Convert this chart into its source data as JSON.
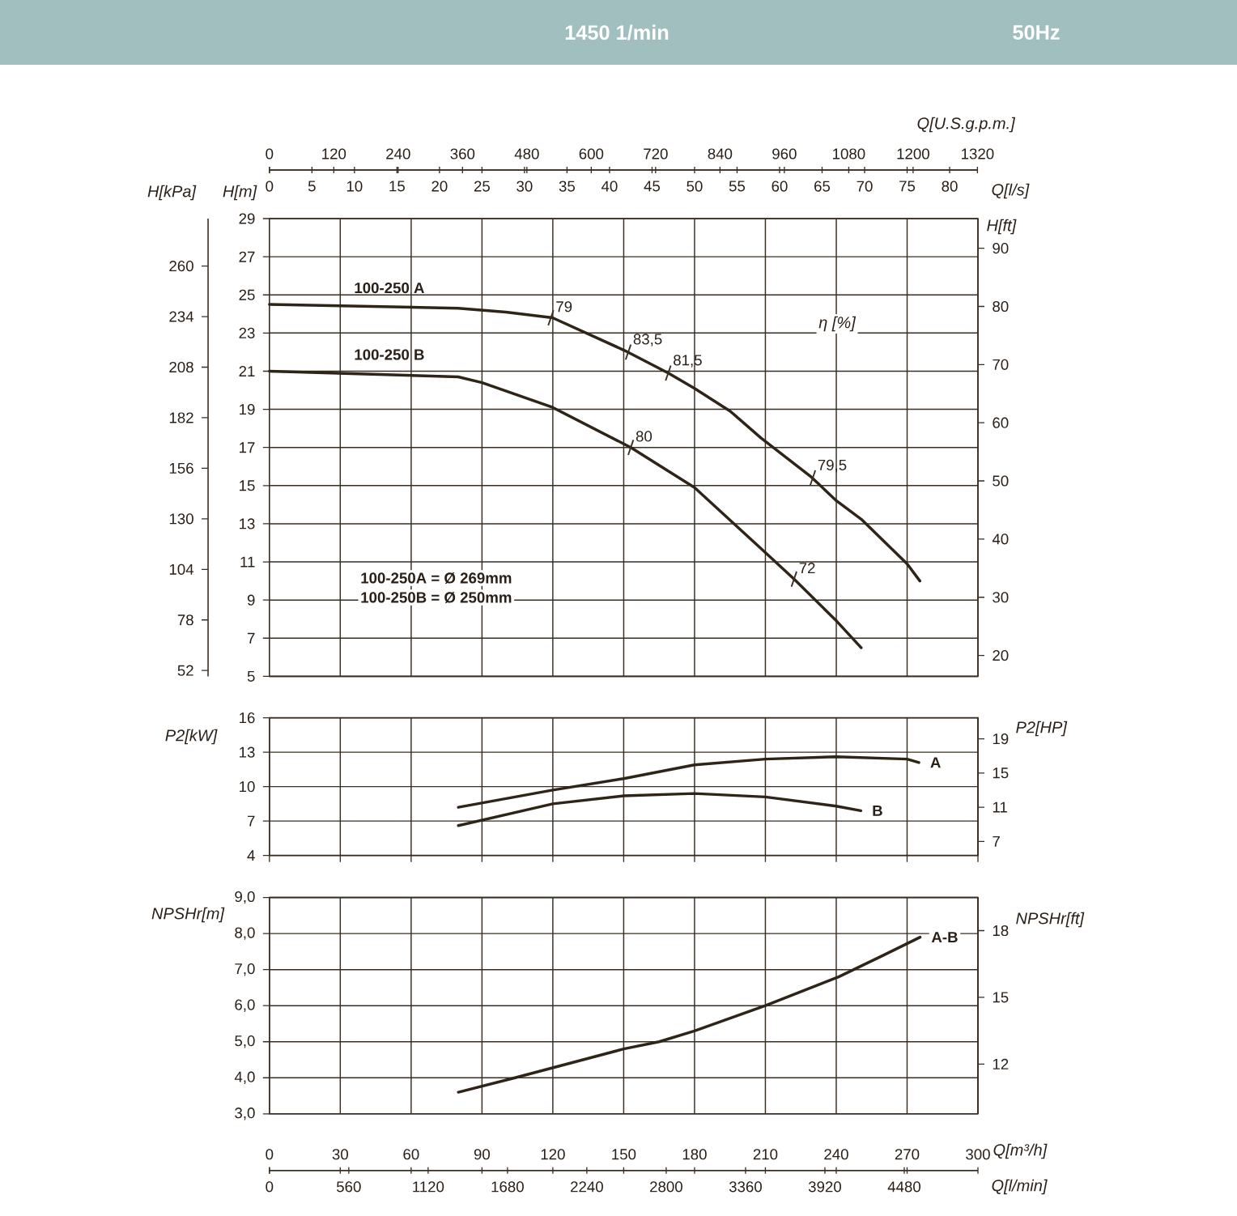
{
  "chart_data": [
    {
      "type": "line",
      "title": "1450 1/min",
      "subtitle": "50Hz",
      "ylabel": "H[m]",
      "y2label": "H[ft]",
      "y3label": "H[kPa]",
      "x2label": "Q[U.S.g.p.m.]",
      "xlabel": "Q[l/s]",
      "xlim": [
        0,
        83.33
      ],
      "xticks": [
        0,
        5,
        10,
        15,
        20,
        25,
        30,
        35,
        40,
        45,
        50,
        55,
        60,
        65,
        70,
        75,
        80
      ],
      "ylim": [
        5,
        29
      ],
      "yticks": [
        5,
        7,
        9,
        11,
        13,
        15,
        17,
        19,
        21,
        23,
        25,
        27,
        29
      ],
      "y2lim": [
        16.4,
        95.1
      ],
      "y2ticks": [
        20,
        30,
        40,
        50,
        60,
        70,
        80,
        90
      ],
      "y3lim": [
        49,
        284.4
      ],
      "y3ticks": [
        52,
        78,
        104,
        130,
        156,
        182,
        208,
        234,
        260
      ],
      "x2lim": [
        0,
        1320.9
      ],
      "x2ticks": [
        0,
        120,
        240,
        360,
        480,
        600,
        720,
        840,
        960,
        1080,
        1200,
        1320
      ],
      "grid": "y",
      "ref_lines": [
        {
          "axis": "x",
          "value": 8.33,
          "color": "#3a2e22"
        },
        {
          "axis": "x",
          "value": 16.67,
          "color": "#3a2e22"
        },
        {
          "axis": "x",
          "value": 25,
          "color": "#3a2e22"
        },
        {
          "axis": "x",
          "value": 33.33,
          "color": "#3a2e22"
        },
        {
          "axis": "x",
          "value": 41.67,
          "color": "#3a2e22"
        },
        {
          "axis": "x",
          "value": 50,
          "color": "#3a2e22"
        },
        {
          "axis": "x",
          "value": 58.33,
          "color": "#3a2e22"
        },
        {
          "axis": "x",
          "value": 66.67,
          "color": "#3a2e22"
        },
        {
          "axis": "x",
          "value": 75,
          "color": "#3a2e22"
        }
      ],
      "series": [
        {
          "name": "100-250 A",
          "color": "#2e2418",
          "x": [
            0,
            22.2,
            27.8,
            33.3,
            41.7,
            46.9,
            50,
            54.2,
            57.8,
            63.6,
            66.7,
            69.7,
            75,
            76.5
          ],
          "values": [
            24.5,
            24.3,
            24.1,
            23.8,
            22.1,
            20.9,
            20.1,
            18.9,
            17.5,
            15.5,
            14.2,
            13.2,
            10.9,
            10.0
          ]
        },
        {
          "name": "100-250 B",
          "color": "#2e2418",
          "x": [
            0,
            22.2,
            25,
            33.3,
            42.5,
            50,
            58.3,
            61.7,
            66.7,
            69.6
          ],
          "values": [
            21.0,
            20.7,
            20.4,
            19.1,
            17.0,
            14.9,
            11.5,
            10.1,
            7.9,
            6.5
          ]
        }
      ],
      "annotations": [
        "η [%]",
        "100-250A = Ø 269mm",
        "100-250B = Ø 250mm",
        {
          "text": "79",
          "x": 33.1,
          "y": 23.8
        },
        {
          "text": "83,5",
          "x": 42.2,
          "y": 22.0
        },
        {
          "text": "81,5",
          "x": 46.9,
          "y": 20.9
        },
        {
          "text": "80",
          "x": 42.5,
          "y": 17.0
        },
        {
          "text": "79,5",
          "x": 63.9,
          "y": 15.4
        },
        {
          "text": "72",
          "x": 61.7,
          "y": 10.1
        }
      ]
    },
    {
      "type": "line",
      "ylabel": "P2[kW]",
      "y2label": "P2[HP]",
      "xlim": [
        0,
        300
      ],
      "xticks": [
        0,
        30,
        60,
        90,
        120,
        150,
        180,
        210,
        240,
        270,
        300
      ],
      "ylim": [
        4,
        16
      ],
      "yticks": [
        4,
        7,
        10,
        13,
        16
      ],
      "y2lim": [
        5.36,
        21.46
      ],
      "y2ticks": [
        7,
        11,
        15,
        19
      ],
      "tick_labels": "y",
      "grid": true,
      "series": [
        {
          "name": "A",
          "color": "#2e2418",
          "x": [
            80,
            120,
            150,
            180,
            210,
            240,
            270,
            275
          ],
          "values": [
            8.2,
            9.7,
            10.7,
            11.9,
            12.4,
            12.6,
            12.4,
            12.1
          ]
        },
        {
          "name": "B",
          "color": "#2e2418",
          "x": [
            80,
            120,
            150,
            180,
            210,
            240,
            250.4
          ],
          "values": [
            6.6,
            8.5,
            9.2,
            9.4,
            9.1,
            8.3,
            7.9
          ]
        }
      ]
    },
    {
      "type": "line",
      "ylabel": "NPSHr[m]",
      "y2label": "NPSHr[ft]",
      "xlabel": "Q[m³/h]",
      "x2label": "Q[l/min]",
      "xlim": [
        0,
        300
      ],
      "xticks": [
        0,
        30,
        60,
        90,
        120,
        150,
        180,
        210,
        240,
        270,
        300
      ],
      "x2lim": [
        0,
        5000
      ],
      "x2ticks": [
        0,
        560,
        1120,
        1680,
        2240,
        2800,
        3360,
        3920,
        4480
      ],
      "ylim": [
        3,
        9
      ],
      "yticks": [
        {
          "value": 3,
          "label": "3,0"
        },
        {
          "value": 4,
          "label": "4,0"
        },
        {
          "value": 5,
          "label": "5,0"
        },
        {
          "value": 6,
          "label": "6,0"
        },
        {
          "value": 7,
          "label": "7,0"
        },
        {
          "value": 8,
          "label": "8,0"
        },
        {
          "value": 9,
          "label": "9,0"
        }
      ],
      "y2lim": [
        9.76,
        19.49
      ],
      "y2ticks": [
        12,
        15,
        18
      ],
      "grid": true,
      "series": [
        {
          "name": "A-B",
          "color": "#2e2418",
          "x": [
            80,
            104,
            150,
            165,
            180,
            210,
            241,
            260,
            275.5
          ],
          "values": [
            3.6,
            4.0,
            4.8,
            5.0,
            5.3,
            6.0,
            6.8,
            7.4,
            7.9
          ]
        }
      ]
    }
  ]
}
